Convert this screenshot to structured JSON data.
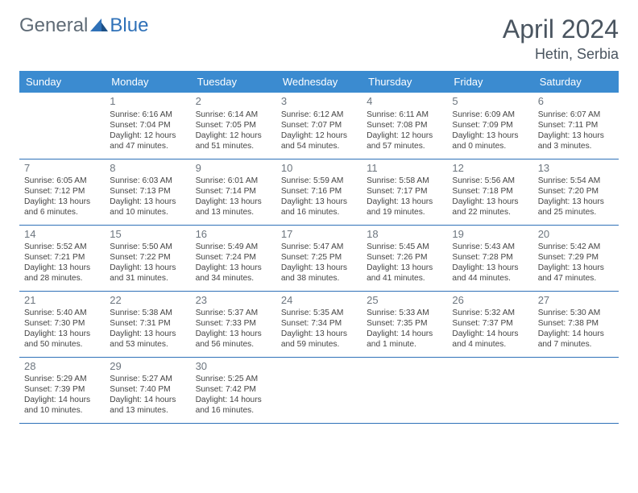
{
  "brand": {
    "part1": "General",
    "part2": "Blue"
  },
  "title": "April 2024",
  "location": "Hetin, Serbia",
  "colors": {
    "header_bg": "#3b8bd0",
    "header_text": "#ffffff",
    "rule": "#2f71b8",
    "logo_gray": "#5f6b76",
    "logo_blue": "#2f71b8",
    "title_color": "#4a5560",
    "cell_text": "#444444",
    "daynum_color": "#6d767f",
    "page_bg": "#ffffff"
  },
  "weekdays": [
    "Sunday",
    "Monday",
    "Tuesday",
    "Wednesday",
    "Thursday",
    "Friday",
    "Saturday"
  ],
  "weeks": [
    [
      null,
      {
        "n": "1",
        "sr": "Sunrise: 6:16 AM",
        "ss": "Sunset: 7:04 PM",
        "dl": "Daylight: 12 hours and 47 minutes."
      },
      {
        "n": "2",
        "sr": "Sunrise: 6:14 AM",
        "ss": "Sunset: 7:05 PM",
        "dl": "Daylight: 12 hours and 51 minutes."
      },
      {
        "n": "3",
        "sr": "Sunrise: 6:12 AM",
        "ss": "Sunset: 7:07 PM",
        "dl": "Daylight: 12 hours and 54 minutes."
      },
      {
        "n": "4",
        "sr": "Sunrise: 6:11 AM",
        "ss": "Sunset: 7:08 PM",
        "dl": "Daylight: 12 hours and 57 minutes."
      },
      {
        "n": "5",
        "sr": "Sunrise: 6:09 AM",
        "ss": "Sunset: 7:09 PM",
        "dl": "Daylight: 13 hours and 0 minutes."
      },
      {
        "n": "6",
        "sr": "Sunrise: 6:07 AM",
        "ss": "Sunset: 7:11 PM",
        "dl": "Daylight: 13 hours and 3 minutes."
      }
    ],
    [
      {
        "n": "7",
        "sr": "Sunrise: 6:05 AM",
        "ss": "Sunset: 7:12 PM",
        "dl": "Daylight: 13 hours and 6 minutes."
      },
      {
        "n": "8",
        "sr": "Sunrise: 6:03 AM",
        "ss": "Sunset: 7:13 PM",
        "dl": "Daylight: 13 hours and 10 minutes."
      },
      {
        "n": "9",
        "sr": "Sunrise: 6:01 AM",
        "ss": "Sunset: 7:14 PM",
        "dl": "Daylight: 13 hours and 13 minutes."
      },
      {
        "n": "10",
        "sr": "Sunrise: 5:59 AM",
        "ss": "Sunset: 7:16 PM",
        "dl": "Daylight: 13 hours and 16 minutes."
      },
      {
        "n": "11",
        "sr": "Sunrise: 5:58 AM",
        "ss": "Sunset: 7:17 PM",
        "dl": "Daylight: 13 hours and 19 minutes."
      },
      {
        "n": "12",
        "sr": "Sunrise: 5:56 AM",
        "ss": "Sunset: 7:18 PM",
        "dl": "Daylight: 13 hours and 22 minutes."
      },
      {
        "n": "13",
        "sr": "Sunrise: 5:54 AM",
        "ss": "Sunset: 7:20 PM",
        "dl": "Daylight: 13 hours and 25 minutes."
      }
    ],
    [
      {
        "n": "14",
        "sr": "Sunrise: 5:52 AM",
        "ss": "Sunset: 7:21 PM",
        "dl": "Daylight: 13 hours and 28 minutes."
      },
      {
        "n": "15",
        "sr": "Sunrise: 5:50 AM",
        "ss": "Sunset: 7:22 PM",
        "dl": "Daylight: 13 hours and 31 minutes."
      },
      {
        "n": "16",
        "sr": "Sunrise: 5:49 AM",
        "ss": "Sunset: 7:24 PM",
        "dl": "Daylight: 13 hours and 34 minutes."
      },
      {
        "n": "17",
        "sr": "Sunrise: 5:47 AM",
        "ss": "Sunset: 7:25 PM",
        "dl": "Daylight: 13 hours and 38 minutes."
      },
      {
        "n": "18",
        "sr": "Sunrise: 5:45 AM",
        "ss": "Sunset: 7:26 PM",
        "dl": "Daylight: 13 hours and 41 minutes."
      },
      {
        "n": "19",
        "sr": "Sunrise: 5:43 AM",
        "ss": "Sunset: 7:28 PM",
        "dl": "Daylight: 13 hours and 44 minutes."
      },
      {
        "n": "20",
        "sr": "Sunrise: 5:42 AM",
        "ss": "Sunset: 7:29 PM",
        "dl": "Daylight: 13 hours and 47 minutes."
      }
    ],
    [
      {
        "n": "21",
        "sr": "Sunrise: 5:40 AM",
        "ss": "Sunset: 7:30 PM",
        "dl": "Daylight: 13 hours and 50 minutes."
      },
      {
        "n": "22",
        "sr": "Sunrise: 5:38 AM",
        "ss": "Sunset: 7:31 PM",
        "dl": "Daylight: 13 hours and 53 minutes."
      },
      {
        "n": "23",
        "sr": "Sunrise: 5:37 AM",
        "ss": "Sunset: 7:33 PM",
        "dl": "Daylight: 13 hours and 56 minutes."
      },
      {
        "n": "24",
        "sr": "Sunrise: 5:35 AM",
        "ss": "Sunset: 7:34 PM",
        "dl": "Daylight: 13 hours and 59 minutes."
      },
      {
        "n": "25",
        "sr": "Sunrise: 5:33 AM",
        "ss": "Sunset: 7:35 PM",
        "dl": "Daylight: 14 hours and 1 minute."
      },
      {
        "n": "26",
        "sr": "Sunrise: 5:32 AM",
        "ss": "Sunset: 7:37 PM",
        "dl": "Daylight: 14 hours and 4 minutes."
      },
      {
        "n": "27",
        "sr": "Sunrise: 5:30 AM",
        "ss": "Sunset: 7:38 PM",
        "dl": "Daylight: 14 hours and 7 minutes."
      }
    ],
    [
      {
        "n": "28",
        "sr": "Sunrise: 5:29 AM",
        "ss": "Sunset: 7:39 PM",
        "dl": "Daylight: 14 hours and 10 minutes."
      },
      {
        "n": "29",
        "sr": "Sunrise: 5:27 AM",
        "ss": "Sunset: 7:40 PM",
        "dl": "Daylight: 14 hours and 13 minutes."
      },
      {
        "n": "30",
        "sr": "Sunrise: 5:25 AM",
        "ss": "Sunset: 7:42 PM",
        "dl": "Daylight: 14 hours and 16 minutes."
      },
      null,
      null,
      null,
      null
    ]
  ]
}
